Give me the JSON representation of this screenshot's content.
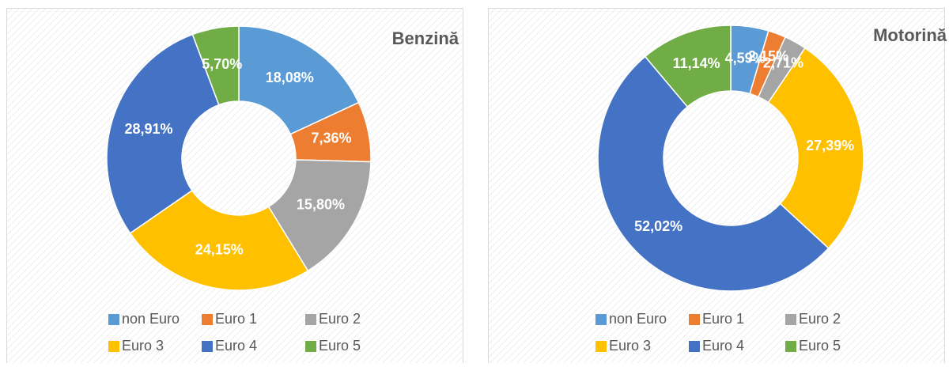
{
  "chart_data": [
    {
      "type": "donut",
      "title": "Benzină",
      "categories": [
        "non Euro",
        "Euro 1",
        "Euro 2",
        "Euro 3",
        "Euro 4",
        "Euro 5"
      ],
      "values": [
        18.08,
        7.36,
        15.8,
        24.15,
        28.91,
        5.7
      ],
      "value_labels": [
        "18,08%",
        "7,36%",
        "15,80%",
        "24,15%",
        "28,91%",
        "5,70%"
      ],
      "colors": [
        "#5b9bd5",
        "#ed7d31",
        "#a5a5a5",
        "#ffc000",
        "#4472c4",
        "#70ad47"
      ],
      "legend": "bottom"
    },
    {
      "type": "donut",
      "title": "Motorină",
      "categories": [
        "non Euro",
        "Euro 1",
        "Euro 2",
        "Euro 3",
        "Euro 4",
        "Euro 5"
      ],
      "values": [
        4.59,
        2.15,
        2.71,
        27.39,
        52.02,
        11.14
      ],
      "value_labels": [
        "4,59%",
        "2,15%",
        "2,71%",
        "27,39%",
        "52,02%",
        "11,14%"
      ],
      "colors": [
        "#5b9bd5",
        "#ed7d31",
        "#a5a5a5",
        "#ffc000",
        "#4472c4",
        "#70ad47"
      ],
      "legend": "bottom"
    }
  ]
}
